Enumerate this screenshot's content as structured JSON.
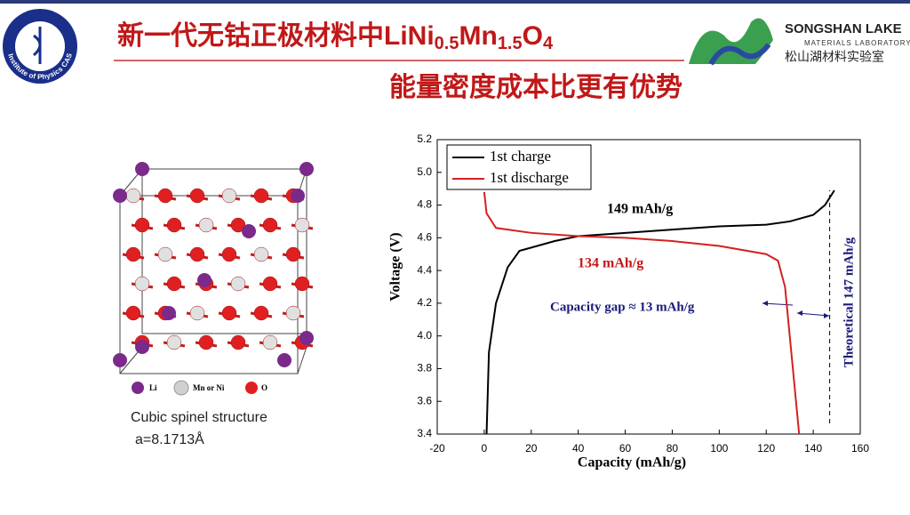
{
  "slide": {
    "title_parts": [
      {
        "text": "新一代无钴正极材料中LiNi",
        "sub": false
      },
      {
        "text": "0.5",
        "sub": true
      },
      {
        "text": "Mn",
        "sub": false
      },
      {
        "text": "1.5",
        "sub": true
      },
      {
        "text": "O",
        "sub": false
      },
      {
        "text": "4",
        "sub": true
      }
    ],
    "subtitle": "能量密度成本比更有优势",
    "logo_left": "Institute of Physics CAS",
    "logo_right": {
      "name": "SONGSHAN LAKE",
      "sub": "MATERIALS LABORATORY",
      "cn": "松山湖材料实验室"
    },
    "structure": {
      "legend": [
        "Li",
        "Mn or Ni",
        "O"
      ],
      "caption": "Cubic spinel structure",
      "lattice": "a=8.1713Å"
    }
  },
  "chart_data": {
    "type": "line",
    "xlabel": "Capacity (mAh/g)",
    "ylabel": "Voltage (V)",
    "xlim": [
      -20,
      160
    ],
    "xticks": [
      -20,
      0,
      20,
      40,
      60,
      80,
      100,
      120,
      140,
      160
    ],
    "ylim": [
      3.4,
      5.2
    ],
    "yticks": [
      3.4,
      3.6,
      3.8,
      {
        "value": 4,
        "label": "4.0"
      },
      4.2,
      4.4,
      4.6,
      4.8,
      {
        "value": 5,
        "label": "5.0"
      },
      5.2
    ],
    "legend": "upper left",
    "series": [
      {
        "name": "1st charge",
        "color": "#000000",
        "x": [
          1,
          2,
          5,
          10,
          15,
          20,
          30,
          40,
          60,
          80,
          100,
          120,
          130,
          140,
          145,
          149
        ],
        "values": [
          3.4,
          3.9,
          4.2,
          4.42,
          4.52,
          4.54,
          4.58,
          4.61,
          4.63,
          4.65,
          4.67,
          4.68,
          4.7,
          4.74,
          4.8,
          4.89
        ]
      },
      {
        "name": "1st discharge",
        "color": "#d42020",
        "x": [
          0,
          1,
          5,
          20,
          40,
          60,
          80,
          100,
          120,
          125,
          128,
          130,
          132,
          134
        ],
        "values": [
          4.88,
          4.75,
          4.66,
          4.63,
          4.61,
          4.6,
          4.58,
          4.55,
          4.5,
          4.46,
          4.3,
          4.0,
          3.7,
          3.4
        ]
      }
    ],
    "vlines": [
      147
    ],
    "annotations": [
      {
        "text": "149 mAh/g",
        "color": "#000000"
      },
      {
        "text": "134 mAh/g",
        "color": "#c41818"
      },
      {
        "text": "Capacity gap ≈ 13 mAh/g",
        "color": "#1a1a7a"
      },
      {
        "text": "Theoretical 147 mAh/g",
        "color": "#1a1a7a"
      }
    ]
  }
}
